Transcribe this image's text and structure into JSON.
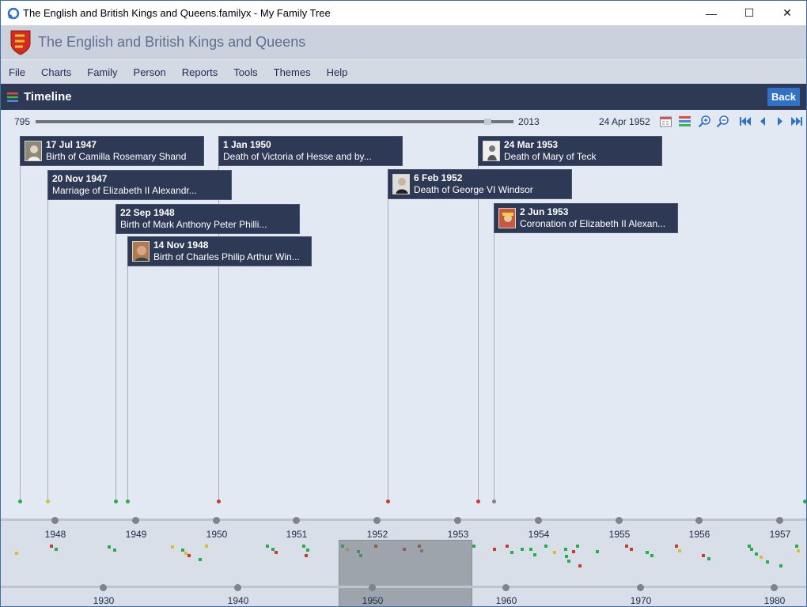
{
  "window": {
    "title": "The English and British Kings and Queens.familyx - My Family Tree",
    "controls": {
      "minimize": "—",
      "maximize": "☐",
      "close": "✕"
    }
  },
  "app": {
    "title": "The English and British Kings and Queens",
    "crest_icon": "royal-arms-icon"
  },
  "menu": [
    "File",
    "Charts",
    "Family",
    "Person",
    "Reports",
    "Tools",
    "Themes",
    "Help"
  ],
  "header": {
    "title": "Timeline",
    "back_label": "Back"
  },
  "range": {
    "start": "795",
    "end": "2013",
    "current_date": "24 Apr 1952",
    "tools": [
      "calendar-icon",
      "layers-icon",
      "zoom-in-icon",
      "zoom-out-icon",
      "first-icon",
      "previous-icon",
      "next-icon",
      "last-icon"
    ]
  },
  "events": [
    {
      "date": "17 Jul 1947",
      "desc": "Birth of Camilla Rosemary Shand",
      "has_photo": true,
      "dot": "#21b04b"
    },
    {
      "date": "20 Nov 1947",
      "desc": "Marriage of Elizabeth II Alexandr...",
      "has_photo": false,
      "dot": "#d6c02b"
    },
    {
      "date": "22 Sep 1948",
      "desc": "Birth of Mark Anthony Peter Philli...",
      "has_photo": false,
      "dot": "#21b04b"
    },
    {
      "date": "14 Nov 1948",
      "desc": "Birth of Charles Philip Arthur Win...",
      "has_photo": true,
      "dot": "#21b04b"
    },
    {
      "date": "1 Jan 1950",
      "desc": "Death of Victoria of Hesse and by...",
      "has_photo": false,
      "dot": "#cf3a2b"
    },
    {
      "date": "6 Feb 1952",
      "desc": "Death of George VI Windsor",
      "has_photo": true,
      "dot": "#cf3a2b"
    },
    {
      "date": "24 Mar 1953",
      "desc": "Death of Mary of Teck",
      "has_photo": true,
      "dot": "#cf3a2b"
    },
    {
      "date": "2 Jun 1953",
      "desc": "Coronation of Elizabeth II Alexan...",
      "has_photo": true,
      "dot": "#7f848c"
    }
  ],
  "axis_years": [
    "1948",
    "1949",
    "1950",
    "1951",
    "1952",
    "1953",
    "1954",
    "1955",
    "1956",
    "1957"
  ],
  "overview_decades": [
    "1930",
    "1940",
    "1950",
    "1960",
    "1970",
    "1980"
  ],
  "colors": {
    "birth": "#21b04b",
    "death": "#cf3a2b",
    "marriage": "#d6c02b",
    "other": "#7f848c",
    "accent": "#2f72c7",
    "dark": "#2e3a55"
  }
}
